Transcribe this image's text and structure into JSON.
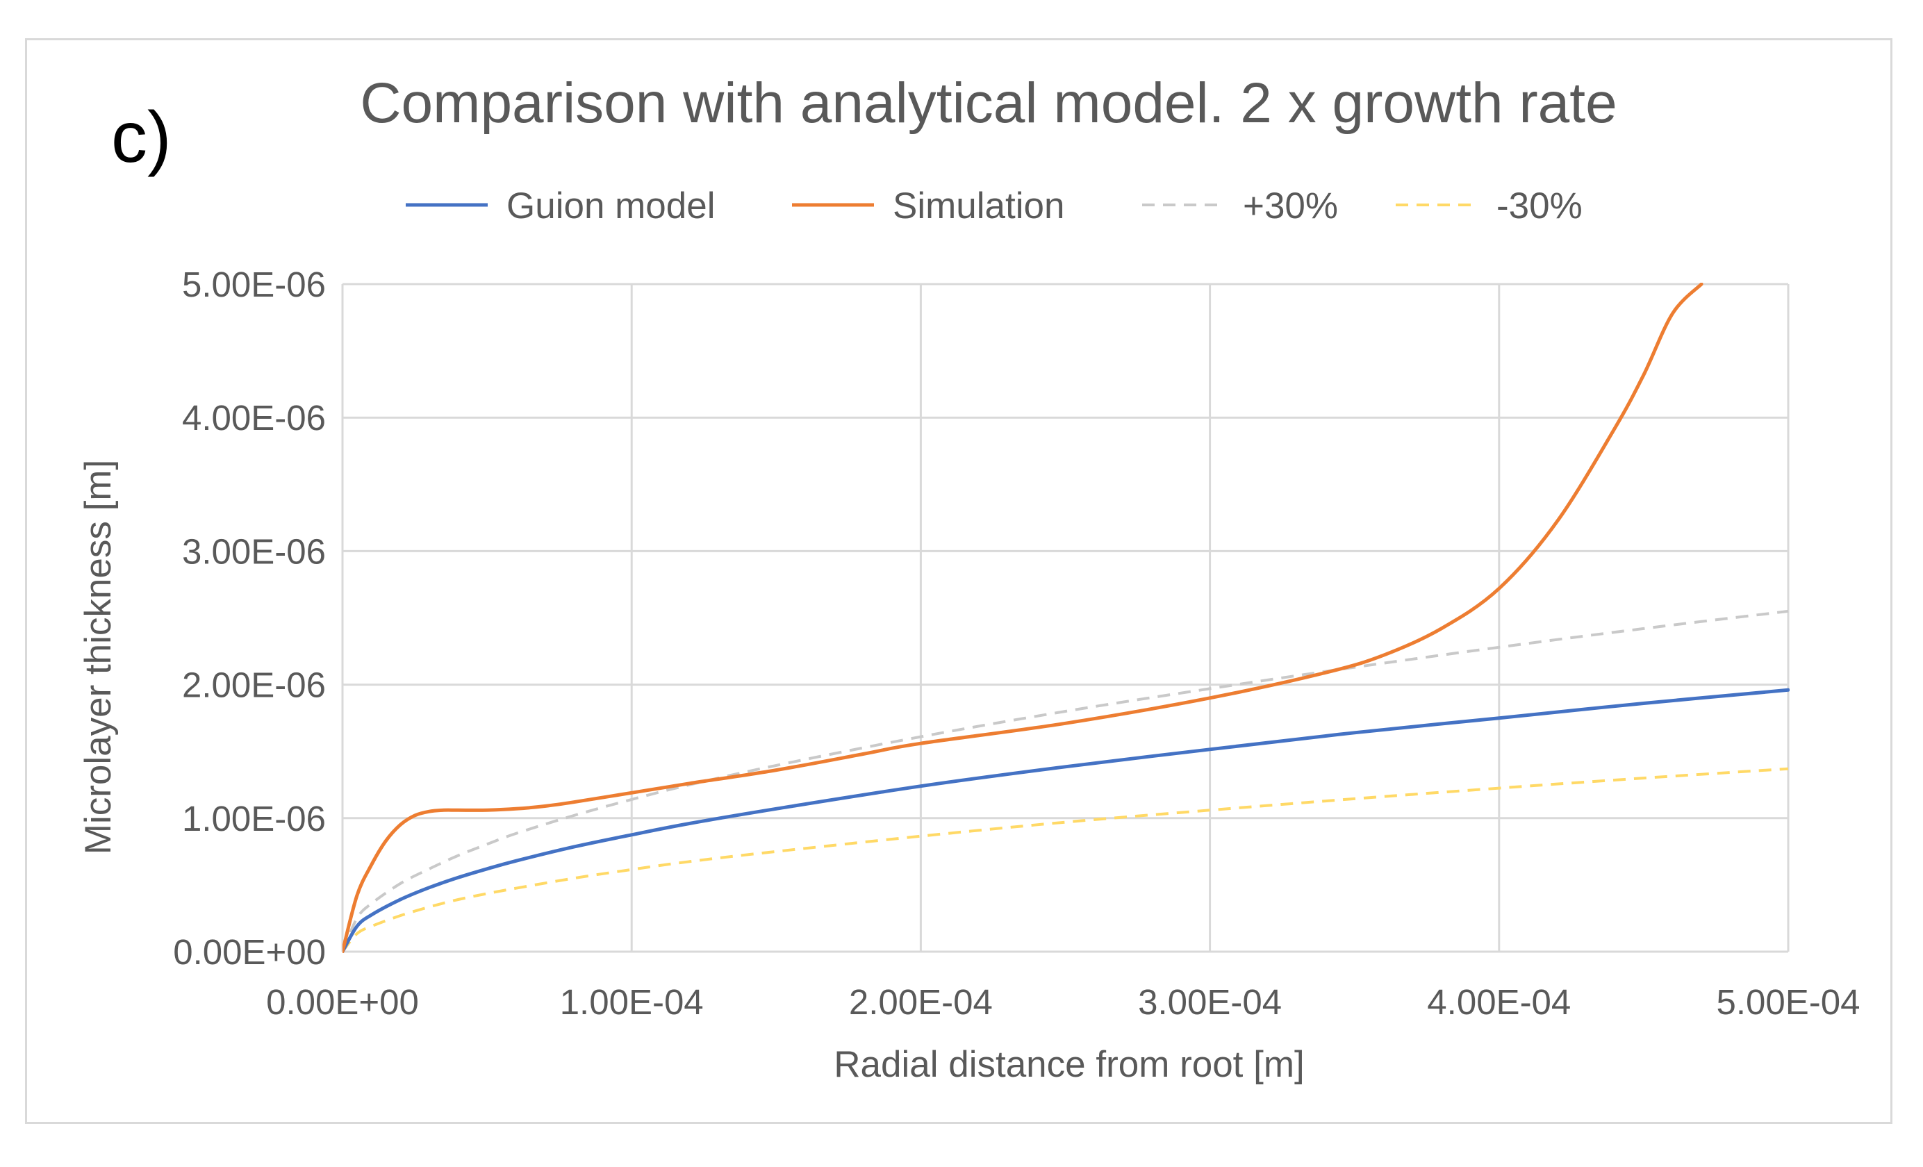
{
  "panel_label": "c)",
  "chart_data": {
    "type": "line",
    "title": "Comparison with analytical model. 2 x growth rate",
    "xlabel": "Radial distance from root [m]",
    "ylabel": "Microlayer thickness [m]",
    "xlim": [
      0,
      0.0005
    ],
    "ylim": [
      0,
      5e-06
    ],
    "grid": true,
    "legend_position": "top",
    "x_ticks": [
      0,
      0.0001,
      0.0002,
      0.0003,
      0.0004,
      0.0005
    ],
    "x_tick_labels": [
      "0.00E+00",
      "1.00E-04",
      "2.00E-04",
      "3.00E-04",
      "4.00E-04",
      "5.00E-04"
    ],
    "y_ticks": [
      0,
      1e-06,
      2e-06,
      3e-06,
      4e-06,
      5e-06
    ],
    "y_tick_labels": [
      "0.00E+00",
      "1.00E-06",
      "2.00E-06",
      "3.00E-06",
      "4.00E-06",
      "5.00E-06"
    ],
    "series": [
      {
        "name": "Guion model",
        "color": "#4472c4",
        "dash": "solid",
        "x": [
          0,
          5e-06,
          1e-05,
          2e-05,
          3e-05,
          4e-05,
          5e-05,
          6e-05,
          8e-05,
          0.0001,
          0.00012,
          0.00015,
          0.0002,
          0.00025,
          0.0003,
          0.00035,
          0.0004,
          0.00045,
          0.0005
        ],
        "y": [
          0,
          1.9e-07,
          2.75e-07,
          3.9e-07,
          4.8e-07,
          5.55e-07,
          6.2e-07,
          6.8e-07,
          7.85e-07,
          8.75e-07,
          9.6e-07,
          1.07e-06,
          1.24e-06,
          1.385e-06,
          1.515e-06,
          1.64e-06,
          1.75e-06,
          1.86e-06,
          1.96e-06
        ]
      },
      {
        "name": "Simulation",
        "color": "#ed7d31",
        "dash": "solid",
        "x": [
          0,
          5e-06,
          1e-05,
          1.5e-05,
          2e-05,
          2.5e-05,
          3e-05,
          3.5e-05,
          4e-05,
          5e-05,
          6e-05,
          7e-05,
          8e-05,
          0.0001,
          0.00012,
          0.00015,
          0.00018,
          0.0002,
          0.00025,
          0.0003,
          0.00034,
          0.00036,
          0.00038,
          0.0004,
          0.00042,
          0.00044,
          0.00045,
          0.00046,
          0.00047
        ],
        "y": [
          0,
          4.2e-07,
          6.5e-07,
          8.3e-07,
          9.5e-07,
          1.02e-06,
          1.05e-06,
          1.06e-06,
          1.06e-06,
          1.06e-06,
          1.07e-06,
          1.09e-06,
          1.12e-06,
          1.19e-06,
          1.26e-06,
          1.36e-06,
          1.48e-06,
          1.56e-06,
          1.71e-06,
          1.9e-06,
          2.09e-06,
          2.22e-06,
          2.42e-06,
          2.72e-06,
          3.22e-06,
          3.92e-06,
          4.32e-06,
          4.78e-06,
          5e-06
        ]
      },
      {
        "name": "+30%",
        "color": "#c9c9c9",
        "dash": "dashed",
        "x": [
          0,
          5e-06,
          1e-05,
          2e-05,
          3e-05,
          4e-05,
          5e-05,
          6e-05,
          8e-05,
          0.0001,
          0.00012,
          0.00015,
          0.0002,
          0.00025,
          0.0003,
          0.00035,
          0.0004,
          0.00045,
          0.0005
        ],
        "y": [
          0,
          2.5e-07,
          3.6e-07,
          5.1e-07,
          6.2e-07,
          7.2e-07,
          8.05e-07,
          8.85e-07,
          1.02e-06,
          1.14e-06,
          1.25e-06,
          1.395e-06,
          1.61e-06,
          1.8e-06,
          1.97e-06,
          2.13e-06,
          2.28e-06,
          2.42e-06,
          2.55e-06
        ]
      },
      {
        "name": "-30%",
        "color": "#ffd966",
        "dash": "dashed",
        "x": [
          0,
          5e-06,
          1e-05,
          2e-05,
          3e-05,
          4e-05,
          5e-05,
          6e-05,
          8e-05,
          0.0001,
          0.00012,
          0.00015,
          0.0002,
          0.00025,
          0.0003,
          0.00035,
          0.0004,
          0.00045,
          0.0005
        ],
        "y": [
          0,
          1.35e-07,
          1.9e-07,
          2.7e-07,
          3.35e-07,
          3.9e-07,
          4.35e-07,
          4.75e-07,
          5.5e-07,
          6.15e-07,
          6.75e-07,
          7.5e-07,
          8.65e-07,
          9.7e-07,
          1.06e-06,
          1.145e-06,
          1.225e-06,
          1.3e-06,
          1.37e-06
        ]
      }
    ]
  }
}
